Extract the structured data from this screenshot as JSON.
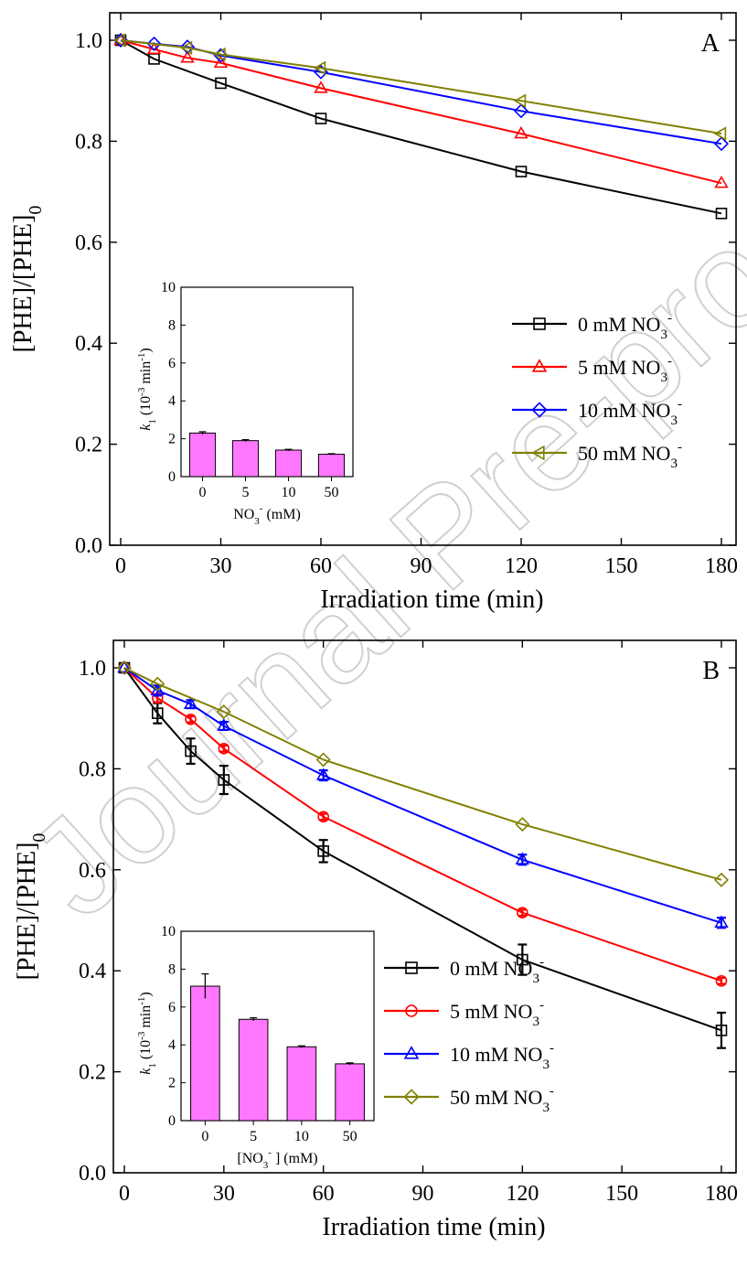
{
  "watermark": "Journal Pre-proof",
  "chart_data": [
    {
      "panel": "A",
      "type": "line",
      "label": "A",
      "xlabel": "Irradiation time (min)",
      "ylabel_main": "[PHE]/[PHE]",
      "ylabel_sub": "0",
      "xlim": [
        0,
        180
      ],
      "ylim": [
        0.0,
        1.0
      ],
      "xticks": [
        0,
        30,
        60,
        90,
        120,
        150,
        180
      ],
      "yticks": [
        0.0,
        0.2,
        0.4,
        0.6,
        0.8,
        1.0
      ],
      "legend_position": "center-right",
      "series": [
        {
          "name": "0 mM NO",
          "name_sub": "3",
          "name_sup": "-",
          "color": "#000000",
          "marker": "square",
          "x": [
            0,
            10,
            30,
            60,
            120,
            180
          ],
          "y": [
            1.0,
            0.963,
            0.915,
            0.845,
            0.74,
            0.657
          ]
        },
        {
          "name": "5 mM NO",
          "name_sub": "3",
          "name_sup": "-",
          "color": "#ff0000",
          "marker": "triangle-up",
          "x": [
            0,
            10,
            20,
            30,
            60,
            120,
            180
          ],
          "y": [
            1.0,
            0.982,
            0.965,
            0.955,
            0.905,
            0.815,
            0.717
          ]
        },
        {
          "name": "10 mM NO",
          "name_sub": "3",
          "name_sup": "-",
          "color": "#0000ff",
          "marker": "diamond",
          "x": [
            0,
            10,
            20,
            30,
            60,
            120,
            180
          ],
          "y": [
            1.0,
            0.993,
            0.987,
            0.97,
            0.937,
            0.86,
            0.795
          ]
        },
        {
          "name": "50 mM NO",
          "name_sub": "3",
          "name_sup": "-",
          "color": "#808000",
          "marker": "triangle-left",
          "x": [
            0,
            20,
            30,
            60,
            120,
            180
          ],
          "y": [
            1.0,
            0.985,
            0.972,
            0.945,
            0.88,
            0.815
          ]
        }
      ],
      "inset": {
        "type": "bar",
        "categories": [
          "0",
          "5",
          "10",
          "50"
        ],
        "values": [
          2.3,
          1.9,
          1.4,
          1.18
        ],
        "errors": [
          0.07,
          0.05,
          0.04,
          0.03
        ],
        "ylim": [
          0,
          10
        ],
        "yticks": [
          0,
          2,
          4,
          6,
          8,
          10
        ],
        "bar_color": "#ff77ff",
        "ylabel_k": "k",
        "ylabel_k_sub": "1",
        "ylabel_unit": " (10",
        "ylabel_unit_sup": "-3",
        "ylabel_unit2": " min",
        "ylabel_unit2_sup": "-1",
        "ylabel_close": ")",
        "xlabel_pre": "NO",
        "xlabel_sub": "3",
        "xlabel_sup": "-",
        "xlabel_post": " (mM)"
      }
    },
    {
      "panel": "B",
      "type": "line",
      "label": "B",
      "xlabel": "Irradiation time (min)",
      "ylabel_main": "[PHE]/[PHE]",
      "ylabel_sub": "0",
      "xlim": [
        0,
        180
      ],
      "ylim": [
        0.0,
        1.0
      ],
      "xticks": [
        0,
        30,
        60,
        90,
        120,
        150,
        180
      ],
      "yticks": [
        0.0,
        0.2,
        0.4,
        0.6,
        0.8,
        1.0
      ],
      "legend_position": "center-right",
      "series": [
        {
          "name": "0 mM NO",
          "name_sub": "3",
          "name_sup": "-",
          "color": "#000000",
          "marker": "square",
          "x": [
            0,
            10,
            20,
            30,
            60,
            120,
            180
          ],
          "y": [
            1.0,
            0.91,
            0.835,
            0.778,
            0.637,
            0.422,
            0.282
          ],
          "err": [
            0,
            0.02,
            0.025,
            0.028,
            0.022,
            0.03,
            0.035
          ]
        },
        {
          "name": "5 mM NO",
          "name_sub": "3",
          "name_sup": "-",
          "color": "#ff0000",
          "marker": "circle",
          "x": [
            0,
            10,
            20,
            30,
            60,
            120,
            180
          ],
          "y": [
            1.0,
            0.94,
            0.898,
            0.84,
            0.705,
            0.515,
            0.38
          ],
          "err": [
            0,
            0.008,
            0.006,
            0.006,
            0.006,
            0.006,
            0.006
          ]
        },
        {
          "name": "10 mM NO",
          "name_sub": "3",
          "name_sup": "-",
          "color": "#0000ff",
          "marker": "triangle-up",
          "x": [
            0,
            10,
            20,
            30,
            60,
            120,
            180
          ],
          "y": [
            1.0,
            0.955,
            0.928,
            0.885,
            0.787,
            0.62,
            0.495
          ],
          "err": [
            0,
            0.01,
            0.008,
            0.008,
            0.01,
            0.01,
            0.01
          ]
        },
        {
          "name": "50 mM NO",
          "name_sub": "3",
          "name_sup": "-",
          "color": "#808000",
          "marker": "diamond",
          "x": [
            0,
            10,
            30,
            60,
            120,
            180
          ],
          "y": [
            1.0,
            0.968,
            0.913,
            0.818,
            0.69,
            0.58
          ],
          "err": [
            0,
            0,
            0,
            0,
            0,
            0
          ]
        }
      ],
      "inset": {
        "type": "bar",
        "categories": [
          "0",
          "5",
          "10",
          "50"
        ],
        "values": [
          7.1,
          5.35,
          3.9,
          3.0
        ],
        "errors": [
          0.65,
          0.08,
          0.05,
          0.05
        ],
        "ylim": [
          0,
          10
        ],
        "yticks": [
          0,
          2,
          4,
          6,
          8,
          10
        ],
        "bar_color": "#ff77ff",
        "ylabel_k": "k",
        "ylabel_k_sub": "1",
        "ylabel_unit": " (10",
        "ylabel_unit_sup": "-3",
        "ylabel_unit2": " min",
        "ylabel_unit2_sup": "-1",
        "ylabel_close": ")",
        "xlabel_pre": "[NO",
        "xlabel_sub": "3",
        "xlabel_sup": "-",
        "xlabel_post": " ] (mM)"
      }
    }
  ]
}
